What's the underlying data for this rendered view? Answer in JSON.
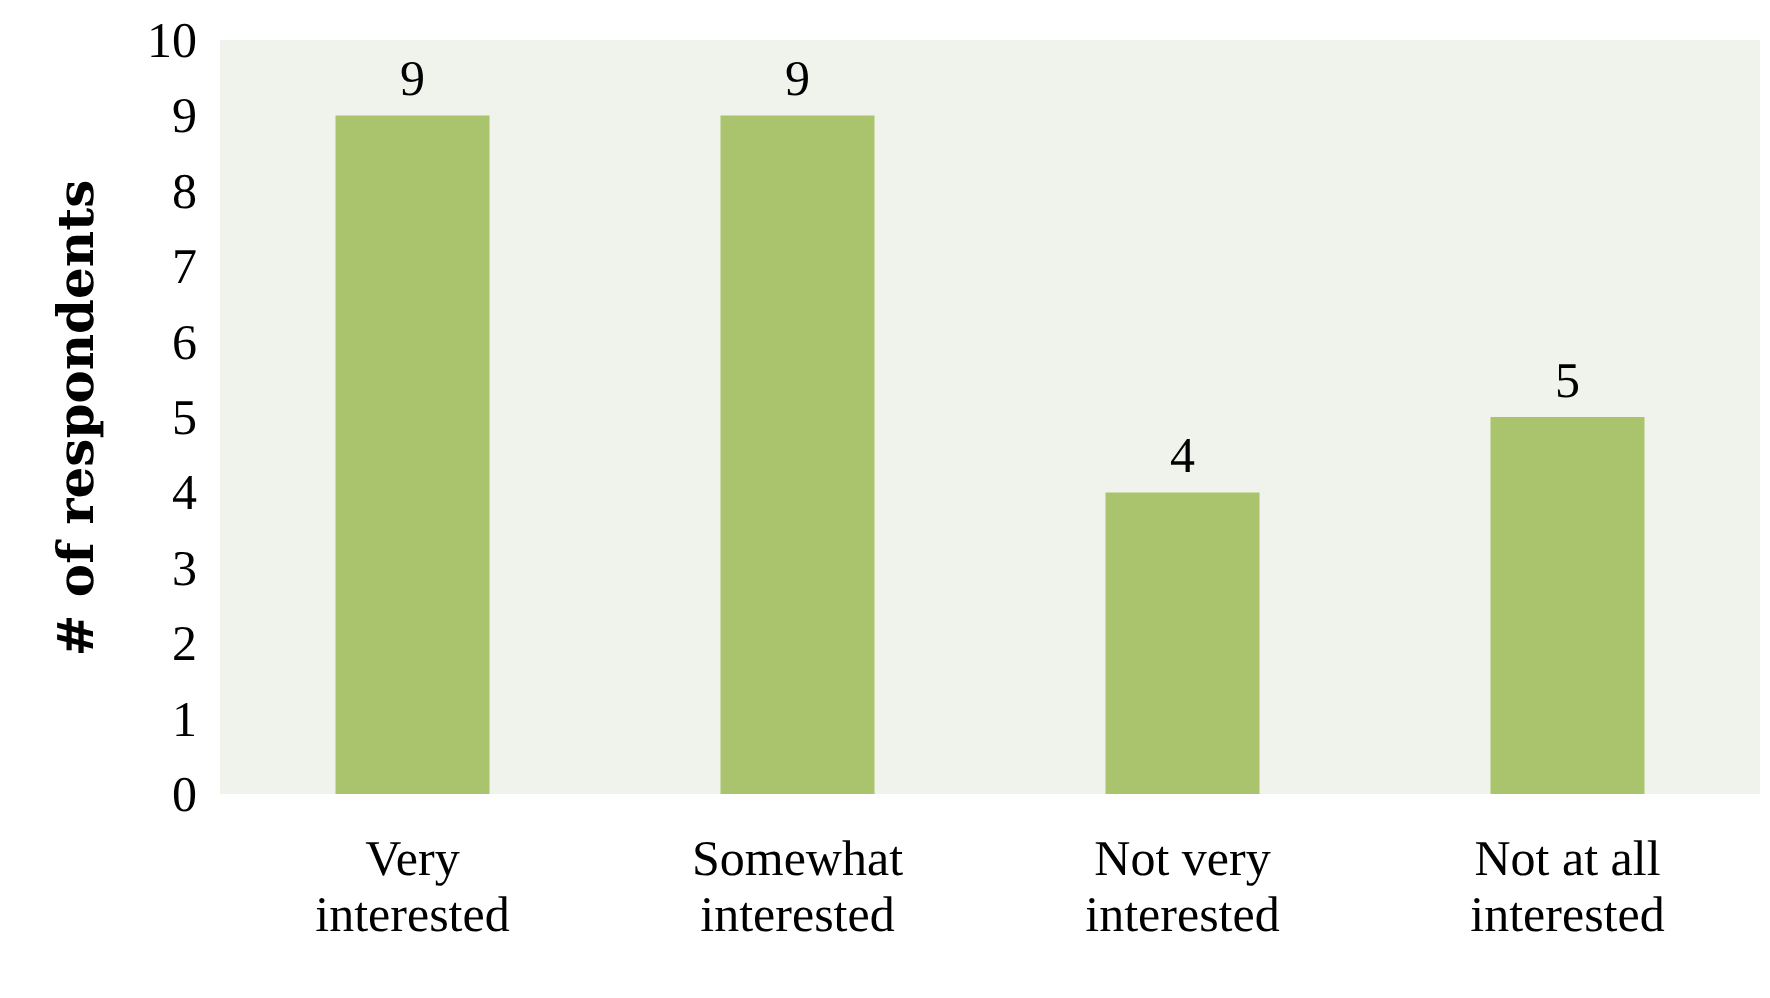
{
  "chart_data": {
    "type": "bar",
    "ylabel": "# of respondents",
    "categories": [
      "Very interested",
      "Somewhat interested",
      "Not very interested",
      "Not at all interested"
    ],
    "values": [
      9,
      9,
      4,
      5
    ],
    "color": "#a9c46c",
    "ylim": [
      0,
      10
    ],
    "yticks": [
      0,
      1,
      2,
      3,
      4,
      5,
      6,
      7,
      8,
      9,
      10
    ],
    "grid": false,
    "data_labels": true
  }
}
